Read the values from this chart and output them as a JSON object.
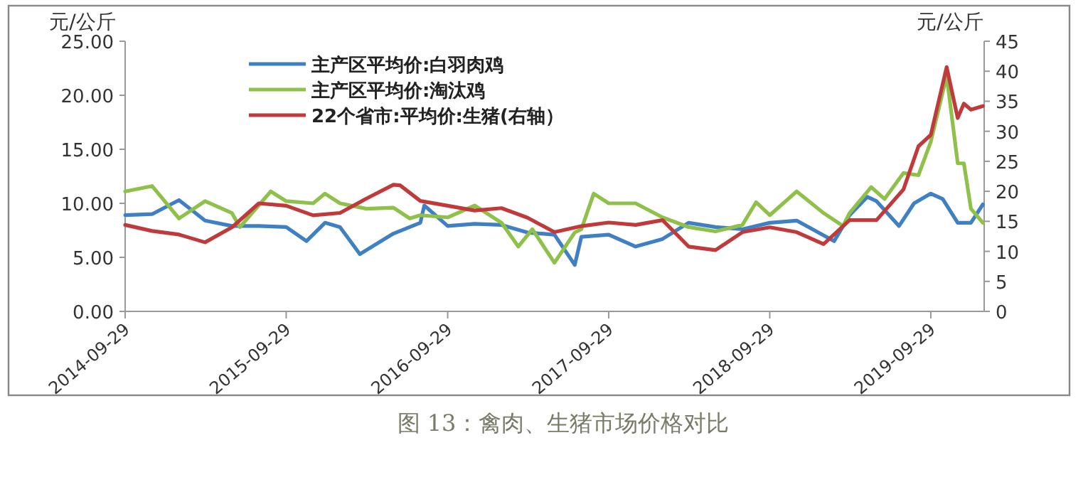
{
  "chart_data": {
    "type": "line",
    "ylabel": "元/公斤",
    "y2label": "元/公斤",
    "annotations": [
      "图 13：禽肉、生猪市场价格对比"
    ],
    "xlim": [
      "2014-09-29",
      "2020-01-28"
    ],
    "xticks": [
      "2014-09-29",
      "2015-09-29",
      "2016-09-29",
      "2017-09-29",
      "2018-09-29",
      "2019-09-29"
    ],
    "ylim": [
      0,
      25
    ],
    "yticks": [
      {
        "value": 0,
        "label": "0.00"
      },
      {
        "value": 5,
        "label": "5.00"
      },
      {
        "value": 10,
        "label": "10.00"
      },
      {
        "value": 15,
        "label": "15.00"
      },
      {
        "value": 20,
        "label": "20.00"
      },
      {
        "value": 25,
        "label": "25.00"
      }
    ],
    "y2lim": [
      0,
      45
    ],
    "y2ticks": [
      0,
      5,
      10,
      15,
      20,
      25,
      30,
      35,
      40,
      45
    ],
    "legend": "top left",
    "grid": false,
    "marker": "none",
    "line_style": "solid",
    "series": [
      {
        "name": "主产区平均价:白羽肉鸡",
        "color": "#3f7fc3",
        "x": [
          "2014-09-29",
          "2014-11-29",
          "2015-01-29",
          "2015-03-29",
          "2015-05-29",
          "2015-07-29",
          "2015-09-29",
          "2015-11-14",
          "2015-12-26",
          "2016-01-29",
          "2016-03-14",
          "2016-05-29",
          "2016-07-29",
          "2016-08-07",
          "2016-09-29",
          "2016-11-29",
          "2017-01-29",
          "2017-03-29",
          "2017-05-29",
          "2017-07-14",
          "2017-07-29",
          "2017-09-29",
          "2017-11-29",
          "2018-01-29",
          "2018-03-29",
          "2018-05-29",
          "2018-07-29",
          "2018-09-29",
          "2018-11-29",
          "2019-02-22",
          "2019-03-29",
          "2019-05-08",
          "2019-05-29",
          "2019-07-19",
          "2019-08-22",
          "2019-09-29",
          "2019-10-26",
          "2019-11-29",
          "2019-12-29",
          "2020-01-25"
        ],
        "values": [
          8.9,
          9.0,
          10.3,
          8.4,
          7.9,
          7.9,
          7.8,
          6.5,
          8.2,
          7.8,
          5.3,
          7.2,
          8.2,
          9.8,
          7.9,
          8.1,
          8.0,
          7.3,
          7.1,
          4.3,
          6.9,
          7.1,
          6.0,
          6.7,
          8.2,
          7.8,
          7.6,
          8.2,
          8.4,
          6.5,
          8.9,
          10.6,
          10.2,
          7.9,
          10.0,
          10.9,
          10.4,
          8.2,
          8.2,
          9.9
        ]
      },
      {
        "name": "主产区平均价:淘汰鸡",
        "color": "#8fc04a",
        "x": [
          "2014-09-29",
          "2014-11-29",
          "2015-01-29",
          "2015-03-29",
          "2015-05-29",
          "2015-06-16",
          "2015-08-25",
          "2015-09-29",
          "2015-11-29",
          "2015-12-26",
          "2016-01-29",
          "2016-03-29",
          "2016-05-29",
          "2016-07-05",
          "2016-07-29",
          "2016-09-29",
          "2016-11-29",
          "2017-01-29",
          "2017-03-08",
          "2017-04-09",
          "2017-05-29",
          "2017-07-14",
          "2017-07-29",
          "2017-08-26",
          "2017-09-29",
          "2017-11-29",
          "2018-01-29",
          "2018-03-29",
          "2018-05-29",
          "2018-07-29",
          "2018-08-29",
          "2018-09-29",
          "2018-11-29",
          "2019-01-29",
          "2019-03-14",
          "2019-03-29",
          "2019-05-17",
          "2019-06-16",
          "2019-07-29",
          "2019-09-01",
          "2019-09-29",
          "2019-11-04",
          "2019-11-29",
          "2019-12-13",
          "2019-12-29",
          "2020-01-25"
        ],
        "values": [
          11.1,
          11.6,
          8.6,
          10.2,
          9.1,
          7.8,
          11.1,
          10.2,
          10.0,
          10.9,
          10.0,
          9.5,
          9.6,
          8.6,
          8.9,
          8.7,
          9.8,
          8.2,
          6.0,
          7.6,
          4.5,
          7.3,
          7.6,
          10.9,
          10.0,
          10.0,
          8.7,
          7.8,
          7.4,
          8.0,
          10.1,
          8.9,
          11.1,
          9.1,
          7.9,
          9.1,
          11.5,
          10.4,
          12.8,
          12.6,
          15.7,
          21.8,
          13.7,
          13.7,
          9.5,
          8.2
        ]
      },
      {
        "name": "22个省市:平均价:生猪(右轴）",
        "color": "#c0393b",
        "axis": "y2",
        "x": [
          "2014-09-29",
          "2014-11-29",
          "2015-01-29",
          "2015-03-29",
          "2015-05-29",
          "2015-07-29",
          "2015-09-29",
          "2015-11-29",
          "2016-01-29",
          "2016-03-29",
          "2016-05-29",
          "2016-06-13",
          "2016-07-29",
          "2016-09-29",
          "2016-11-29",
          "2017-01-29",
          "2017-03-29",
          "2017-05-29",
          "2017-07-29",
          "2017-09-29",
          "2017-11-29",
          "2018-01-29",
          "2018-03-29",
          "2018-05-29",
          "2018-07-29",
          "2018-09-29",
          "2018-11-29",
          "2019-01-29",
          "2019-03-29",
          "2019-05-29",
          "2019-07-29",
          "2019-09-01",
          "2019-09-29",
          "2019-11-04",
          "2019-11-29",
          "2019-12-13",
          "2019-12-29",
          "2020-01-25"
        ],
        "values": [
          14.4,
          13.4,
          12.8,
          11.5,
          14.0,
          18.0,
          17.6,
          16.0,
          16.4,
          18.8,
          21.1,
          21.0,
          18.4,
          17.6,
          16.8,
          17.2,
          15.6,
          13.2,
          14.2,
          14.8,
          14.4,
          15.2,
          10.8,
          10.2,
          13.2,
          14.0,
          13.2,
          11.2,
          15.2,
          15.2,
          20.3,
          27.5,
          29.4,
          40.7,
          32.2,
          34.6,
          33.6,
          34.2
        ]
      }
    ]
  }
}
